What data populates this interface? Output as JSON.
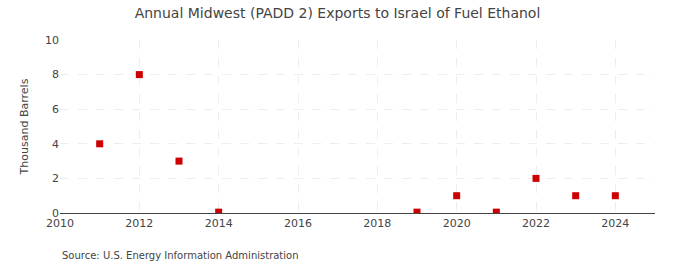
{
  "chart_data": {
    "type": "scatter",
    "title": "Annual Midwest (PADD 2) Exports to Israel of Fuel Ethanol",
    "ylabel": "Thousand Barrels",
    "source": "Source: U.S. Energy Information Administration",
    "x": [
      2011,
      2012,
      2013,
      2014,
      2019,
      2020,
      2021,
      2022,
      2023,
      2024
    ],
    "values": [
      4,
      8,
      3,
      0.05,
      0.05,
      1,
      0.05,
      2,
      1,
      1
    ],
    "color": "#cc0000",
    "marker": "square",
    "xlim": [
      2010,
      2025
    ],
    "xticks": [
      2010,
      2012,
      2014,
      2016,
      2018,
      2020,
      2022,
      2024
    ],
    "ylim": [
      0,
      10
    ],
    "yticks": [
      0,
      2,
      4,
      6,
      8,
      10
    ],
    "grid": true
  }
}
